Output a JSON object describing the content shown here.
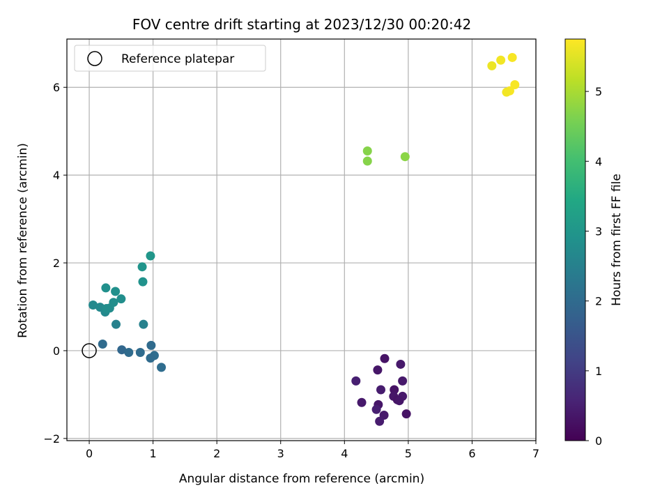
{
  "chart_data": {
    "type": "scatter",
    "title": "FOV centre drift starting at 2023/12/30 00:20:42",
    "xlabel": "Angular distance from reference (arcmin)",
    "ylabel": "Rotation from reference (arcmin)",
    "xlim": [
      -0.35,
      7.0
    ],
    "ylim": [
      -2.05,
      7.1
    ],
    "x_ticks": [
      0,
      1,
      2,
      3,
      4,
      5,
      6,
      7
    ],
    "y_ticks": [
      -2,
      0,
      2,
      4,
      6
    ],
    "grid": true,
    "legend": {
      "position": "top-left",
      "entries": [
        {
          "label": "Reference platepar",
          "marker": "open-circle"
        }
      ]
    },
    "reference_point": {
      "x": 0,
      "y": 0
    },
    "colorbar": {
      "label": "Hours from first FF file",
      "colormap": "viridis",
      "range": [
        0,
        5.75
      ],
      "ticks": [
        0,
        1,
        2,
        3,
        4,
        5
      ]
    },
    "points": [
      {
        "x": 4.63,
        "y": -0.18,
        "c": 0.3
      },
      {
        "x": 4.52,
        "y": -0.44,
        "c": 0.35
      },
      {
        "x": 4.88,
        "y": -0.31,
        "c": 0.4
      },
      {
        "x": 4.18,
        "y": -0.69,
        "c": 0.5
      },
      {
        "x": 4.57,
        "y": -0.89,
        "c": 0.45
      },
      {
        "x": 4.91,
        "y": -0.69,
        "c": 0.4
      },
      {
        "x": 4.78,
        "y": -0.89,
        "c": 0.3
      },
      {
        "x": 4.77,
        "y": -1.04,
        "c": 0.35
      },
      {
        "x": 4.83,
        "y": -1.12,
        "c": 0.3
      },
      {
        "x": 4.91,
        "y": -1.04,
        "c": 0.4
      },
      {
        "x": 4.86,
        "y": -1.14,
        "c": 0.35
      },
      {
        "x": 4.27,
        "y": -1.18,
        "c": 0.4
      },
      {
        "x": 4.53,
        "y": -1.23,
        "c": 0.35
      },
      {
        "x": 4.5,
        "y": -1.34,
        "c": 0.5
      },
      {
        "x": 4.62,
        "y": -1.47,
        "c": 0.4
      },
      {
        "x": 4.97,
        "y": -1.44,
        "c": 0.3
      },
      {
        "x": 4.55,
        "y": -1.61,
        "c": 0.45
      },
      {
        "x": 0.21,
        "y": 0.15,
        "c": 2.0
      },
      {
        "x": 0.51,
        "y": 0.02,
        "c": 1.9
      },
      {
        "x": 0.62,
        "y": -0.04,
        "c": 2.0
      },
      {
        "x": 0.8,
        "y": -0.04,
        "c": 2.0
      },
      {
        "x": 0.97,
        "y": 0.12,
        "c": 2.0
      },
      {
        "x": 1.02,
        "y": -0.11,
        "c": 2.05
      },
      {
        "x": 0.96,
        "y": -0.17,
        "c": 2.0
      },
      {
        "x": 1.13,
        "y": -0.38,
        "c": 2.05
      },
      {
        "x": 0.42,
        "y": 0.6,
        "c": 2.5
      },
      {
        "x": 0.85,
        "y": 0.6,
        "c": 2.5
      },
      {
        "x": 0.06,
        "y": 1.04,
        "c": 2.7
      },
      {
        "x": 0.17,
        "y": 0.99,
        "c": 2.7
      },
      {
        "x": 0.25,
        "y": 0.88,
        "c": 2.7
      },
      {
        "x": 0.32,
        "y": 0.97,
        "c": 2.75
      },
      {
        "x": 0.27,
        "y": 0.96,
        "c": 2.8
      },
      {
        "x": 0.38,
        "y": 1.1,
        "c": 2.8
      },
      {
        "x": 0.5,
        "y": 1.18,
        "c": 2.8
      },
      {
        "x": 0.26,
        "y": 1.43,
        "c": 2.85
      },
      {
        "x": 0.41,
        "y": 1.35,
        "c": 2.85
      },
      {
        "x": 0.84,
        "y": 1.57,
        "c": 2.9
      },
      {
        "x": 0.83,
        "y": 1.91,
        "c": 2.95
      },
      {
        "x": 0.96,
        "y": 2.16,
        "c": 3.0
      },
      {
        "x": 4.36,
        "y": 4.55,
        "c": 4.7
      },
      {
        "x": 4.36,
        "y": 4.32,
        "c": 4.7
      },
      {
        "x": 4.95,
        "y": 4.42,
        "c": 4.75
      },
      {
        "x": 6.63,
        "y": 6.68,
        "c": 5.7
      },
      {
        "x": 6.45,
        "y": 6.62,
        "c": 5.65
      },
      {
        "x": 6.31,
        "y": 6.49,
        "c": 5.6
      },
      {
        "x": 6.67,
        "y": 6.06,
        "c": 5.7
      },
      {
        "x": 6.59,
        "y": 5.92,
        "c": 5.7
      },
      {
        "x": 6.54,
        "y": 5.89,
        "c": 5.65
      }
    ]
  }
}
